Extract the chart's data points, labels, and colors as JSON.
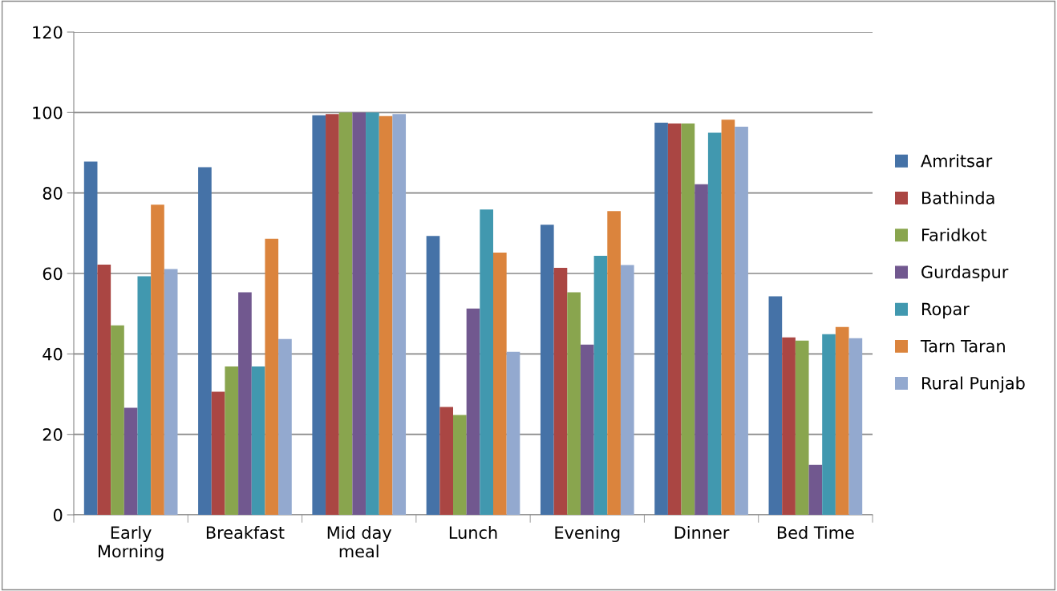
{
  "chart_data": {
    "type": "bar",
    "categories": [
      "Early\nMorning",
      "Breakfast",
      "Mid day\nmeal",
      "Lunch",
      "Evening",
      "Dinner",
      "Bed Time"
    ],
    "series": [
      {
        "name": "Amritsar",
        "color": "#4572a7",
        "values": [
          87.8,
          86.4,
          99.3,
          69.3,
          72.1,
          97.5,
          54.3
        ]
      },
      {
        "name": "Bathinda",
        "color": "#aa4643",
        "values": [
          62.2,
          30.6,
          99.6,
          26.8,
          61.4,
          97.3,
          44.1
        ]
      },
      {
        "name": "Faridkot",
        "color": "#89a54e",
        "values": [
          47.1,
          36.9,
          100,
          24.8,
          55.3,
          97.3,
          43.3
        ]
      },
      {
        "name": "Gurdaspur",
        "color": "#71588f",
        "values": [
          26.6,
          55.3,
          100,
          51.3,
          42.3,
          82.2,
          12.4
        ]
      },
      {
        "name": "Ropar",
        "color": "#4198af",
        "values": [
          59.3,
          36.9,
          100,
          75.9,
          64.4,
          95,
          44.9
        ]
      },
      {
        "name": "Tarn Taran",
        "color": "#db843d",
        "values": [
          77.1,
          68.6,
          99.1,
          65.2,
          75.5,
          98.2,
          46.7
        ]
      },
      {
        "name": "Rural Punjab",
        "color": "#93a9cf",
        "values": [
          61.1,
          43.7,
          99.6,
          40.5,
          62.1,
          96.5,
          43.9
        ]
      }
    ],
    "ylim": [
      0,
      120
    ],
    "yticks": [
      0,
      20,
      40,
      60,
      80,
      100,
      120
    ],
    "grid": "y",
    "legend": "right"
  }
}
